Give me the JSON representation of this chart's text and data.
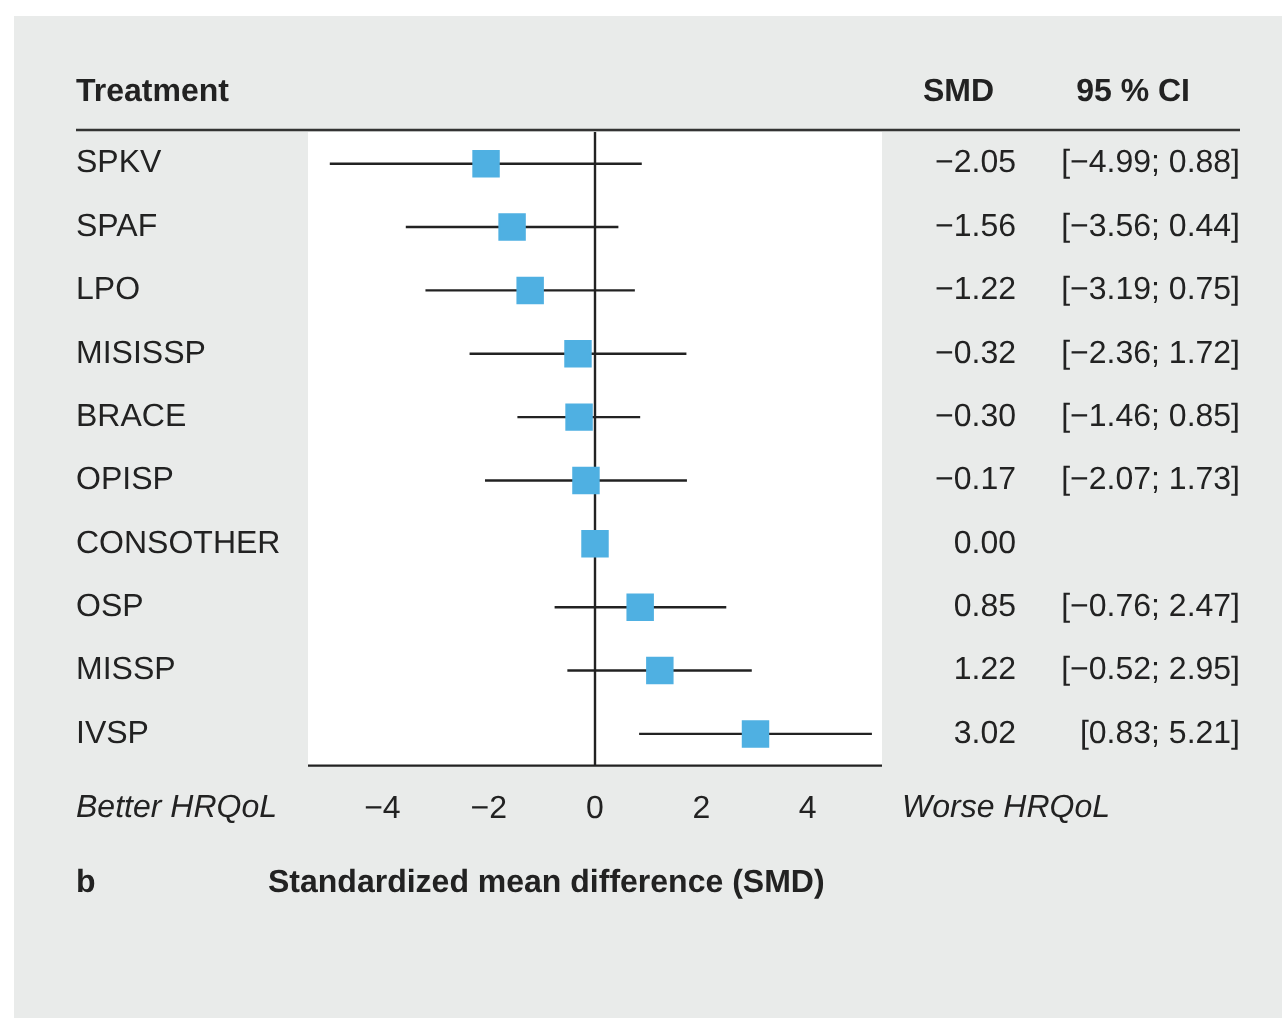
{
  "chart_data": {
    "type": "scatter",
    "orientation": "horizontal",
    "ylabel": "Treatment",
    "xlabel": "Standardized mean difference (SMD)",
    "categories": [
      "SPKV",
      "SPAF",
      "LPO",
      "MISISSP",
      "BRACE",
      "OPISP",
      "CONSOTHER",
      "OSP",
      "MISSP",
      "IVSP"
    ],
    "values": [
      -2.05,
      -1.56,
      -1.22,
      -0.32,
      -0.3,
      -0.17,
      0.0,
      0.85,
      1.22,
      3.02
    ],
    "errors": [
      [
        -4.99,
        0.88
      ],
      [
        -3.56,
        0.44
      ],
      [
        -3.19,
        0.75
      ],
      [
        -2.36,
        1.72
      ],
      [
        -1.46,
        0.85
      ],
      [
        -2.07,
        1.73
      ],
      null,
      [
        -0.76,
        2.47
      ],
      [
        -0.52,
        2.95
      ],
      [
        0.83,
        5.21
      ]
    ],
    "value_labels": [
      "−2.05",
      "−1.56",
      "−1.22",
      "−0.32",
      "−0.30",
      "−0.17",
      "0.00",
      "0.85",
      "1.22",
      "3.02"
    ],
    "color": "#4fb0e2",
    "marker": "square",
    "xlim": [
      -5.4,
      5.4
    ],
    "xticks": [
      {
        "value": -4,
        "label": "−4"
      },
      {
        "value": -2,
        "label": "−2"
      },
      0,
      2,
      4
    ],
    "ref_lines": [
      {
        "axis": "x",
        "value": 0,
        "color": "#222222"
      }
    ],
    "legend": false,
    "grid": false,
    "annotations": [
      "SMD",
      "95 % CI",
      "[−4.99; 0.88]",
      "[−3.56; 0.44]",
      "[−3.19; 0.75]",
      "[−2.36; 1.72]",
      "[−1.46; 0.85]",
      "[−2.07; 1.73]",
      "[−0.76; 2.47]",
      "[−0.52; 2.95]",
      "[0.83; 5.21]",
      "Better HRQoL",
      "Worse HRQoL",
      "b"
    ]
  }
}
